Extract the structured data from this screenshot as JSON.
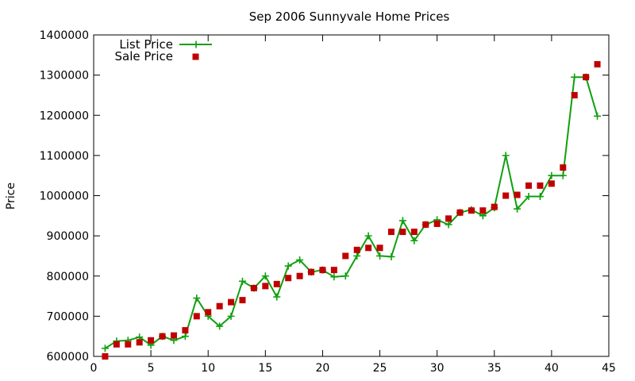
{
  "chart_data": {
    "type": "line",
    "title": "Sep 2006 Sunnyvale Home Prices",
    "xlabel": "",
    "ylabel": "Price",
    "xlim": [
      0,
      45
    ],
    "ylim": [
      600000,
      1400000
    ],
    "xticks": [
      0,
      5,
      10,
      15,
      20,
      25,
      30,
      35,
      40,
      45
    ],
    "yticks": [
      600000,
      700000,
      800000,
      900000,
      1000000,
      1100000,
      1200000,
      1300000,
      1400000
    ],
    "grid": false,
    "legend_position": "top-left",
    "x": [
      1,
      2,
      3,
      4,
      5,
      6,
      7,
      8,
      9,
      10,
      11,
      12,
      13,
      14,
      15,
      16,
      17,
      18,
      19,
      20,
      21,
      22,
      23,
      24,
      25,
      26,
      27,
      28,
      29,
      30,
      31,
      32,
      33,
      34,
      35,
      36,
      37,
      38,
      39,
      40,
      41,
      42,
      43,
      44
    ],
    "series": [
      {
        "name": "List Price",
        "style": "linespoints",
        "color": "#0fa00f",
        "values": [
          620000,
          638000,
          640000,
          648000,
          628000,
          650000,
          640000,
          650000,
          745000,
          700000,
          675000,
          700000,
          787000,
          770000,
          800000,
          748000,
          825000,
          840000,
          810000,
          815000,
          798000,
          800000,
          850000,
          900000,
          850000,
          848000,
          938000,
          888000,
          928000,
          940000,
          928000,
          958000,
          965000,
          950000,
          970000,
          1100000,
          967000,
          998000,
          998000,
          1050000,
          1050000,
          1295000,
          1295000,
          1198000
        ]
      },
      {
        "name": "Sale Price",
        "style": "points",
        "color": "#c00000",
        "values": [
          600000,
          630000,
          630000,
          635000,
          640000,
          650000,
          652000,
          665000,
          700000,
          710000,
          725000,
          735000,
          740000,
          770000,
          775000,
          780000,
          795000,
          800000,
          810000,
          815000,
          815000,
          850000,
          865000,
          870000,
          870000,
          910000,
          910000,
          910000,
          928000,
          930000,
          943000,
          958000,
          963000,
          963000,
          972000,
          1000000,
          1002000,
          1025000,
          1025000,
          1030000,
          1070000,
          1250000,
          1295000,
          1327000
        ]
      }
    ]
  }
}
